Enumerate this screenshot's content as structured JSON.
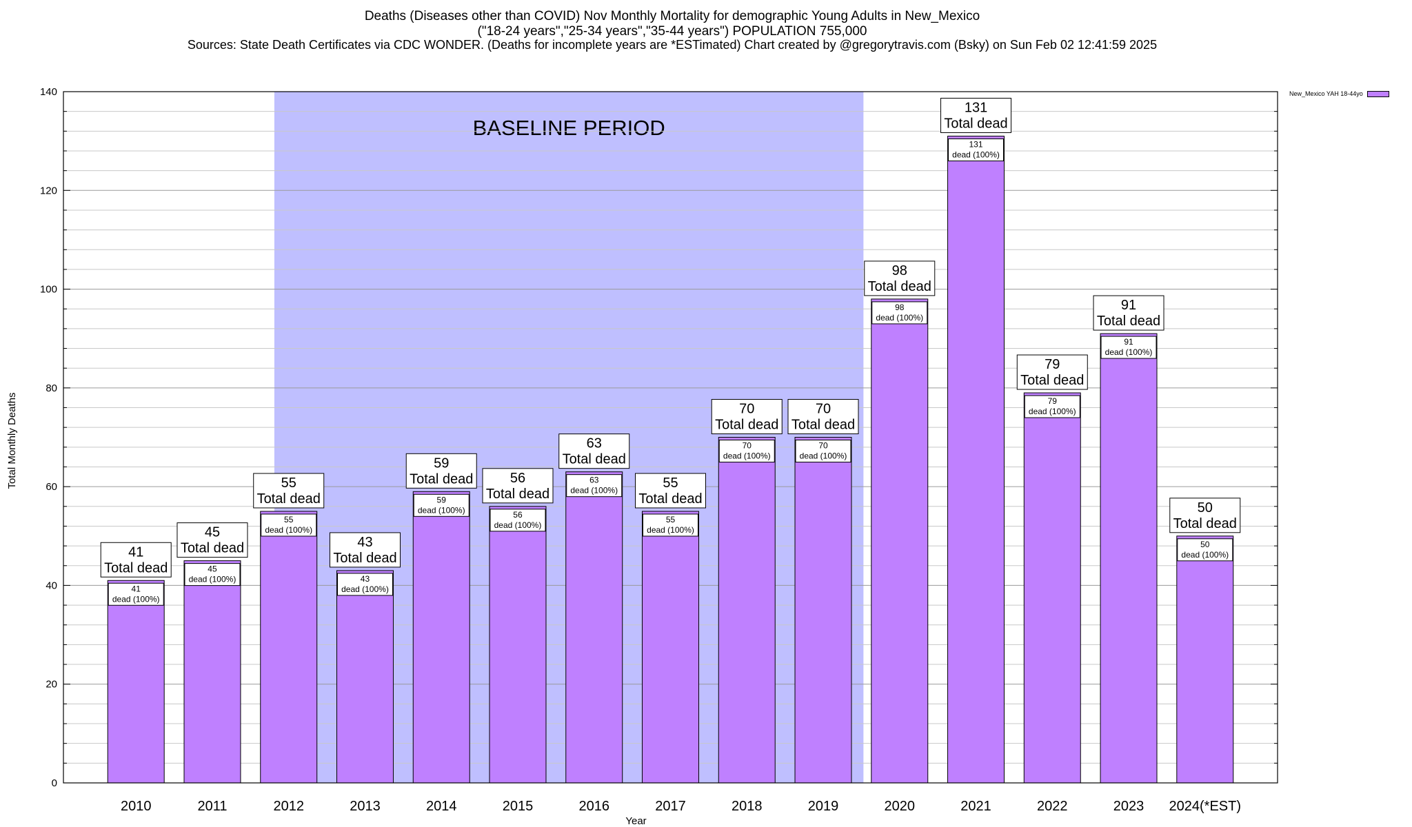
{
  "titles": {
    "line1": "Deaths (Diseases other than COVID) Nov Monthly Mortality for demographic Young Adults in New_Mexico",
    "line2": "(\"18-24 years\",\"25-34 years\",\"35-44 years\") POPULATION 755,000",
    "line3": "Sources: State Death Certificates via CDC WONDER. (Deaths for incomplete years are *ESTimated)                Chart created by @gregorytravis.com (Bsky) on Sun Feb 02 12:41:59 2025"
  },
  "legend": {
    "label": "New_Mexico YAH 18-44yo",
    "color": "#bf80ff"
  },
  "colors": {
    "bar": "#bf80ff",
    "baseline_band": "#bfbfff",
    "grid": "#c8c8c8"
  },
  "chart_data": {
    "type": "bar",
    "xlabel": "Year",
    "ylabel": "Total Monthly Deaths",
    "ylim": [
      0,
      140
    ],
    "y_ticks": [
      0,
      20,
      40,
      60,
      80,
      100,
      120,
      140
    ],
    "grid": true,
    "legend_position": "top-right",
    "categories": [
      "2010",
      "2011",
      "2012",
      "2013",
      "2014",
      "2015",
      "2016",
      "2017",
      "2018",
      "2019",
      "2020",
      "2021",
      "2022",
      "2023",
      "2024(*EST)"
    ],
    "series": [
      {
        "name": "New_Mexico YAH 18-44yo",
        "values": [
          41,
          45,
          55,
          43,
          59,
          56,
          63,
          55,
          70,
          70,
          98,
          131,
          79,
          91,
          50
        ]
      }
    ],
    "top_labels": [
      "41\nTotal dead",
      "45\nTotal dead",
      "55\nTotal dead",
      "43\nTotal dead",
      "59\nTotal dead",
      "56\nTotal dead",
      "63\nTotal dead",
      "55\nTotal dead",
      "70\nTotal dead",
      "70\nTotal dead",
      "98\nTotal dead",
      "131\nTotal dead",
      "79\nTotal dead",
      "91\nTotal dead",
      "50\nTotal dead"
    ],
    "inner_labels": [
      "41\ndead (100%)",
      "45\ndead (100%)",
      "55\ndead (100%)",
      "43\ndead (100%)",
      "59\ndead (100%)",
      "56\ndead (100%)",
      "63\ndead (100%)",
      "55\ndead (100%)",
      "70\ndead (100%)",
      "70\ndead (100%)",
      "98\ndead (100%)",
      "131\ndead (100%)",
      "79\ndead (100%)",
      "91\ndead (100%)",
      "50\ndead (100%)"
    ],
    "annotations": [
      {
        "text": "BASELINE PERIOD",
        "x_start": "2012",
        "x_end": "2019"
      }
    ]
  }
}
